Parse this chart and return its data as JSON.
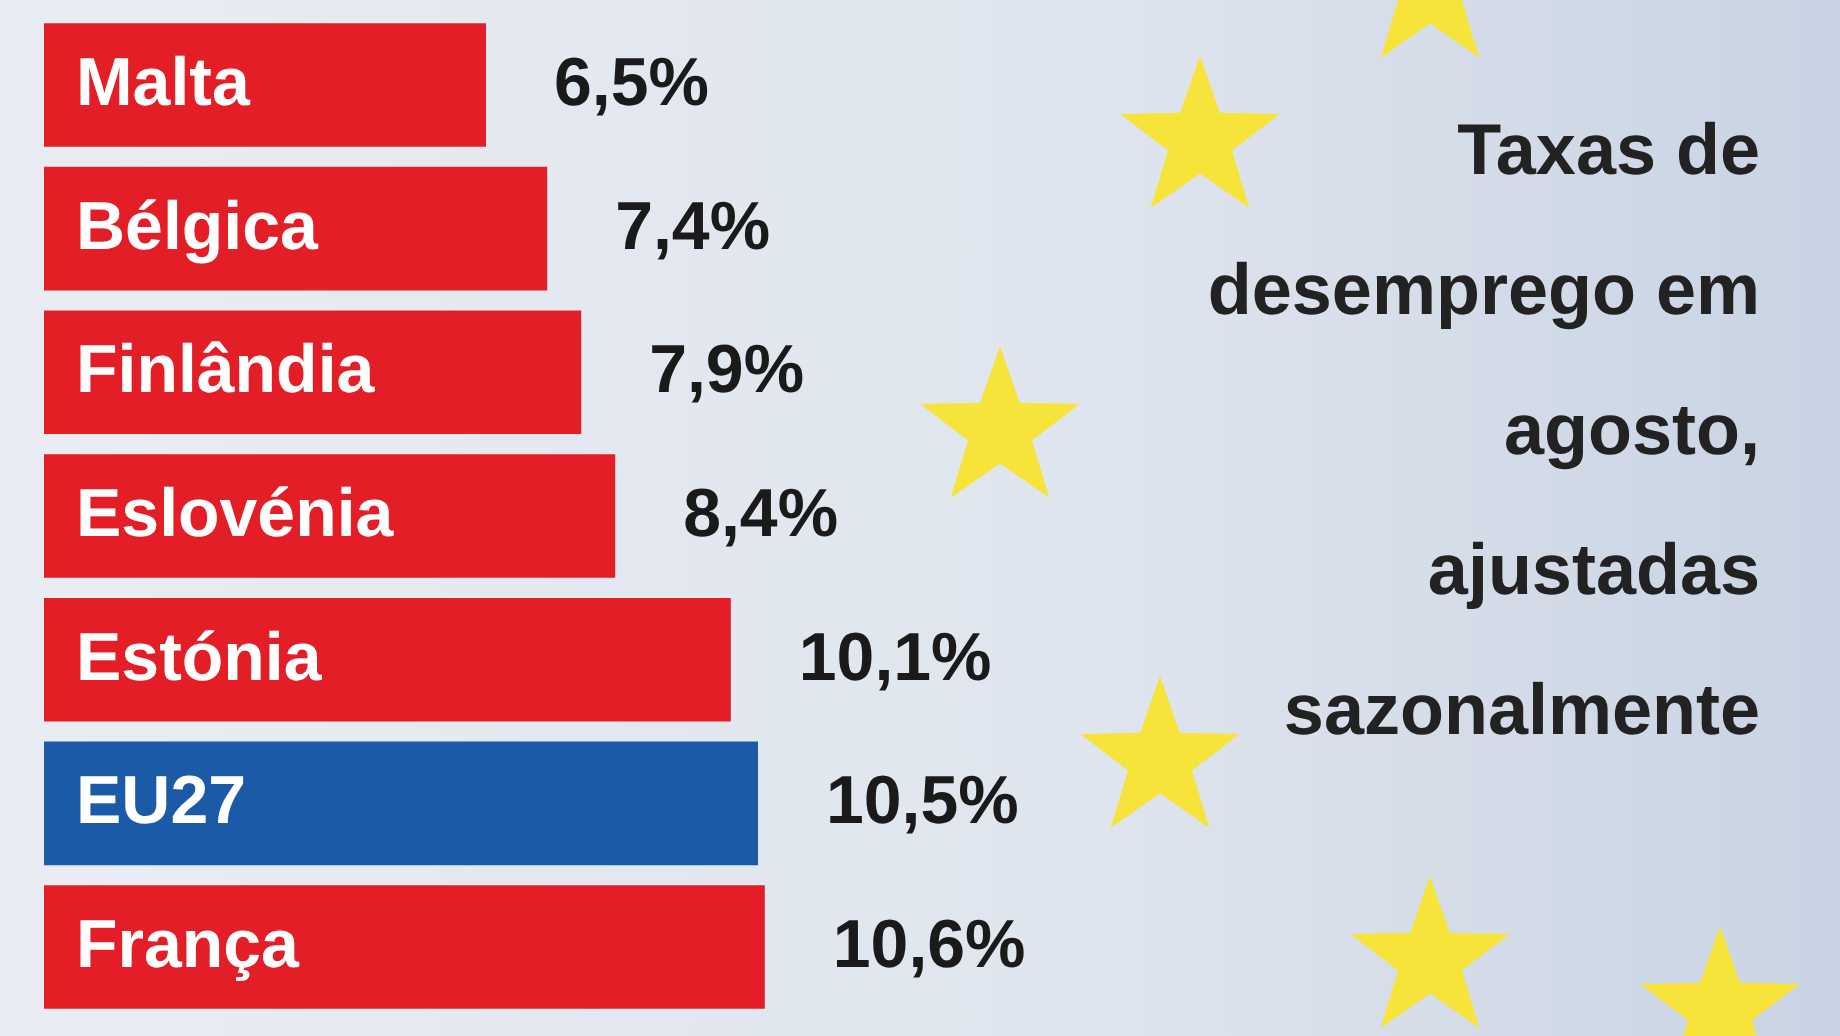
{
  "chart_data": {
    "type": "bar",
    "orientation": "horizontal",
    "title": "Taxas de desemprego em agosto, ajustadas sazonalmente",
    "categories": [
      "Malta",
      "Bélgica",
      "Finlândia",
      "Eslovénia",
      "Estónia",
      "EU27",
      "França"
    ],
    "values": [
      6.5,
      7.4,
      7.9,
      8.4,
      10.1,
      10.5,
      10.6
    ],
    "colors": [
      "#e41e26",
      "#e41e26",
      "#e41e26",
      "#e41e26",
      "#e41e26",
      "#1b5aa6",
      "#e41e26"
    ],
    "value_labels": [
      "6,5%",
      "7,4%",
      "7,9%",
      "8,4%",
      "10,1%",
      "10,5%",
      "10,6%"
    ]
  }
}
